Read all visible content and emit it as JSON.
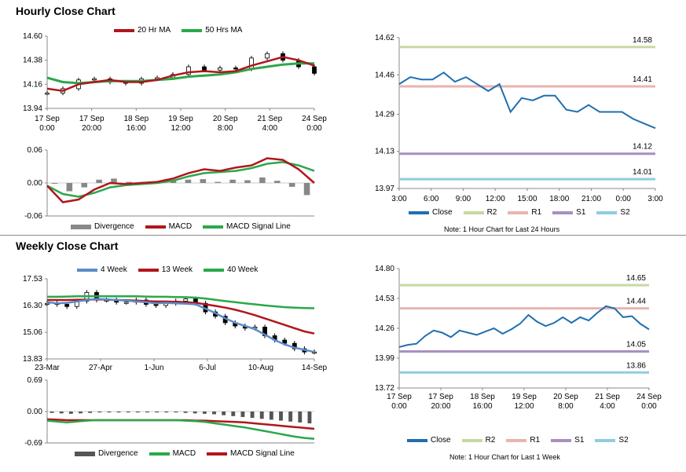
{
  "hourly": {
    "title": "Hourly Close Chart",
    "legend": [
      "20 Hr MA",
      "50 Hrs MA"
    ],
    "macd_legend": [
      "Divergence",
      "MACD",
      "MACD Signal Line"
    ],
    "right_legend": [
      "Close",
      "R2",
      "R1",
      "S1",
      "S2"
    ],
    "note": "Note: 1 Hour Chart for Last 24 Hours"
  },
  "weekly": {
    "title": "Weekly Close Chart",
    "legend": [
      "4 Week",
      "13 Week",
      "40 Week"
    ],
    "macd_legend": [
      "Divergence",
      "MACD",
      "MACD Signal Line"
    ],
    "right_legend": [
      "Close",
      "R2",
      "R1",
      "S1",
      "S2"
    ],
    "note": "Note: 1 Hour Chart for Last 1 Week"
  },
  "colors": {
    "ma_red": "#b0161c",
    "ma_green": "#2aa84a",
    "ma_blue": "#5b8cc8",
    "close": "#1f6fb0",
    "r2": "#c8d8a0",
    "r1": "#e8b4b0",
    "s1": "#a890c0",
    "s2": "#90cce0",
    "divergence": "#888888"
  },
  "chart_data": [
    {
      "id": "hourly_price",
      "type": "line",
      "x_ticks": [
        "17 Sep\n0:00",
        "17 Sep\n20:00",
        "18 Sep\n16:00",
        "19 Sep\n12:00",
        "20 Sep\n8:00",
        "21 Sep\n4:00",
        "24 Sep\n0:00"
      ],
      "y_ticks": [
        13.94,
        14.16,
        14.38,
        14.6
      ],
      "ylim": [
        13.94,
        14.6
      ],
      "series": [
        {
          "name": "20 Hr MA",
          "values": [
            14.12,
            14.1,
            14.16,
            14.18,
            14.2,
            14.18,
            14.18,
            14.2,
            14.24,
            14.27,
            14.28,
            14.27,
            14.28,
            14.33,
            14.37,
            14.41,
            14.38,
            14.33
          ]
        },
        {
          "name": "50 Hrs MA",
          "values": [
            14.22,
            14.18,
            14.17,
            14.18,
            14.19,
            14.19,
            14.19,
            14.2,
            14.21,
            14.23,
            14.24,
            14.25,
            14.27,
            14.3,
            14.32,
            14.34,
            14.35,
            14.35
          ]
        }
      ],
      "candles_close": [
        14.08,
        14.12,
        14.2,
        14.21,
        14.18,
        14.17,
        14.21,
        14.22,
        14.25,
        14.32,
        14.29,
        14.31,
        14.3,
        14.4,
        14.44,
        14.38,
        14.32,
        14.26
      ]
    },
    {
      "id": "hourly_macd",
      "type": "line",
      "y_ticks": [
        -0.06,
        0.0,
        0.06
      ],
      "ylim": [
        -0.06,
        0.06
      ],
      "series": [
        {
          "name": "MACD",
          "values": [
            -0.005,
            -0.035,
            -0.03,
            -0.012,
            0.0,
            -0.002,
            0.0,
            0.002,
            0.008,
            0.018,
            0.025,
            0.022,
            0.028,
            0.032,
            0.045,
            0.042,
            0.025,
            0.0
          ]
        },
        {
          "name": "MACD Signal Line",
          "values": [
            -0.005,
            -0.02,
            -0.025,
            -0.018,
            -0.008,
            -0.004,
            -0.002,
            0.0,
            0.004,
            0.012,
            0.018,
            0.02,
            0.022,
            0.027,
            0.035,
            0.038,
            0.032,
            0.022
          ]
        }
      ],
      "divergence": [
        0.0,
        -0.015,
        -0.008,
        0.006,
        0.008,
        0.002,
        0.002,
        0.002,
        0.004,
        0.006,
        0.007,
        0.002,
        0.006,
        0.005,
        0.01,
        0.004,
        -0.007,
        -0.022
      ]
    },
    {
      "id": "hourly_levels",
      "type": "line",
      "x_ticks": [
        "3:00",
        "6:00",
        "9:00",
        "12:00",
        "15:00",
        "18:00",
        "21:00",
        "0:00",
        "3:00"
      ],
      "y_ticks": [
        13.97,
        14.13,
        14.29,
        14.46,
        14.62
      ],
      "ylim": [
        13.97,
        14.62
      ],
      "series": [
        {
          "name": "Close",
          "values": [
            14.42,
            14.45,
            14.44,
            14.44,
            14.47,
            14.43,
            14.45,
            14.42,
            14.39,
            14.42,
            14.3,
            14.36,
            14.35,
            14.37,
            14.37,
            14.31,
            14.3,
            14.33,
            14.3,
            14.3,
            14.3,
            14.27,
            14.25,
            14.23
          ]
        },
        {
          "name": "R2",
          "values": [
            14.58
          ]
        },
        {
          "name": "R1",
          "values": [
            14.41
          ]
        },
        {
          "name": "S1",
          "values": [
            14.12
          ]
        },
        {
          "name": "S2",
          "values": [
            14.01
          ]
        }
      ],
      "level_labels": [
        "14.58",
        "14.41",
        "14.12",
        "14.01"
      ]
    },
    {
      "id": "weekly_price",
      "type": "line",
      "x_ticks": [
        "23-Mar",
        "27-Apr",
        "1-Jun",
        "6-Jul",
        "10-Aug",
        "14-Sep"
      ],
      "y_ticks": [
        13.83,
        15.06,
        16.3,
        17.53
      ],
      "ylim": [
        13.83,
        17.53
      ],
      "series": [
        {
          "name": "4 Week",
          "values": [
            16.45,
            16.4,
            16.42,
            16.48,
            16.55,
            16.6,
            16.58,
            16.55,
            16.52,
            16.48,
            16.45,
            16.4,
            16.42,
            16.4,
            16.38,
            16.35,
            16.15,
            15.95,
            15.7,
            15.5,
            15.35,
            15.2,
            14.95,
            14.7,
            14.5,
            14.35,
            14.25,
            14.15
          ]
        },
        {
          "name": "13 Week",
          "values": [
            16.55,
            16.55,
            16.55,
            16.56,
            16.57,
            16.58,
            16.57,
            16.55,
            16.54,
            16.52,
            16.5,
            16.48,
            16.48,
            16.47,
            16.45,
            16.42,
            16.35,
            16.28,
            16.2,
            16.1,
            15.98,
            15.85,
            15.7,
            15.55,
            15.4,
            15.25,
            15.1,
            15.0
          ]
        },
        {
          "name": "40 Week",
          "values": [
            16.7,
            16.7,
            16.71,
            16.72,
            16.72,
            16.73,
            16.72,
            16.72,
            16.72,
            16.72,
            16.71,
            16.7,
            16.7,
            16.69,
            16.68,
            16.66,
            16.62,
            16.56,
            16.5,
            16.45,
            16.4,
            16.35,
            16.3,
            16.26,
            16.22,
            16.2,
            16.18,
            16.17
          ]
        }
      ],
      "candles_close": [
        16.4,
        16.35,
        16.25,
        16.5,
        16.9,
        16.55,
        16.55,
        16.45,
        16.45,
        16.55,
        16.35,
        16.3,
        16.4,
        16.5,
        16.6,
        16.4,
        16.0,
        15.8,
        15.5,
        15.35,
        15.25,
        15.3,
        14.9,
        14.7,
        14.55,
        14.3,
        14.15,
        14.15
      ]
    },
    {
      "id": "weekly_macd",
      "type": "line",
      "y_ticks": [
        -0.69,
        0.0,
        0.69
      ],
      "ylim": [
        -0.69,
        0.69
      ],
      "series": [
        {
          "name": "MACD",
          "values": [
            -0.2,
            -0.22,
            -0.24,
            -0.22,
            -0.2,
            -0.19,
            -0.19,
            -0.19,
            -0.19,
            -0.19,
            -0.19,
            -0.19,
            -0.19,
            -0.19,
            -0.2,
            -0.21,
            -0.23,
            -0.26,
            -0.29,
            -0.32,
            -0.35,
            -0.39,
            -0.43,
            -0.47,
            -0.51,
            -0.55,
            -0.58,
            -0.6
          ]
        },
        {
          "name": "MACD Signal Line",
          "values": [
            -0.17,
            -0.18,
            -0.19,
            -0.19,
            -0.19,
            -0.19,
            -0.19,
            -0.19,
            -0.19,
            -0.19,
            -0.19,
            -0.19,
            -0.19,
            -0.19,
            -0.19,
            -0.2,
            -0.2,
            -0.21,
            -0.22,
            -0.23,
            -0.24,
            -0.26,
            -0.28,
            -0.3,
            -0.32,
            -0.34,
            -0.36,
            -0.38
          ]
        }
      ],
      "divergence": [
        -0.03,
        -0.04,
        -0.05,
        -0.04,
        -0.03,
        -0.02,
        -0.02,
        -0.02,
        -0.02,
        -0.02,
        -0.02,
        -0.02,
        -0.02,
        -0.02,
        -0.03,
        -0.04,
        -0.05,
        -0.06,
        -0.08,
        -0.1,
        -0.12,
        -0.14,
        -0.16,
        -0.18,
        -0.2,
        -0.22,
        -0.24,
        -0.26
      ]
    },
    {
      "id": "weekly_levels",
      "type": "line",
      "x_ticks": [
        "17 Sep\n0:00",
        "17 Sep\n20:00",
        "18 Sep\n16:00",
        "19 Sep\n12:00",
        "20 Sep\n8:00",
        "21 Sep\n4:00",
        "24 Sep\n0:00"
      ],
      "y_ticks": [
        13.72,
        13.99,
        14.26,
        14.53,
        14.8
      ],
      "ylim": [
        13.72,
        14.8
      ],
      "series": [
        {
          "name": "Close",
          "values": [
            14.09,
            14.11,
            14.12,
            14.19,
            14.24,
            14.22,
            14.18,
            14.24,
            14.22,
            14.2,
            14.23,
            14.26,
            14.21,
            14.25,
            14.3,
            14.38,
            14.32,
            14.28,
            14.31,
            14.36,
            14.31,
            14.36,
            14.33,
            14.4,
            14.46,
            14.44,
            14.36,
            14.37,
            14.3,
            14.25
          ]
        },
        {
          "name": "R2",
          "values": [
            14.65
          ]
        },
        {
          "name": "R1",
          "values": [
            14.44
          ]
        },
        {
          "name": "S1",
          "values": [
            14.05
          ]
        },
        {
          "name": "S2",
          "values": [
            13.86
          ]
        }
      ],
      "level_labels": [
        "14.65",
        "14.44",
        "14.05",
        "13.86"
      ]
    }
  ]
}
